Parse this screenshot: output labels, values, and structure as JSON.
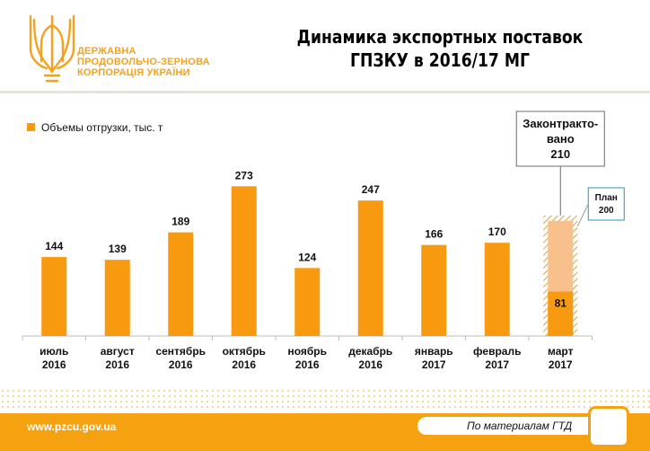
{
  "header": {
    "org_lines": [
      "ДЕРЖАВНА",
      "ПРОДОВОЛЬЧО-ЗЕРНОВА",
      "КОРПОРАЦІЯ УКРАЇНИ"
    ],
    "title_lines": [
      "Динамика экспортных поставок",
      "ГПЗКУ в 2016/17 МГ"
    ]
  },
  "footer": {
    "url": "www.pzcu.gov.ua",
    "source": "По материалам ГТД"
  },
  "colors": {
    "bar": "#f79a0f",
    "planned": "#f8c08a",
    "brand": "#f6a10f",
    "hatch": "#d4a24c",
    "plan_border": "#2a8fc5"
  },
  "chart_data": {
    "type": "bar",
    "series": [
      {
        "name": "Объемы отгрузки, тыс. т",
        "values": [
          144,
          139,
          189,
          273,
          124,
          247,
          166,
          170,
          81
        ]
      }
    ],
    "categories": [
      [
        "июль",
        "2016"
      ],
      [
        "август",
        "2016"
      ],
      [
        "сентябрь",
        "2016"
      ],
      [
        "октябрь",
        "2016"
      ],
      [
        "ноябрь",
        "2016"
      ],
      [
        "декабрь",
        "2016"
      ],
      [
        "январь",
        "2017"
      ],
      [
        "февраль",
        "2017"
      ],
      [
        "март",
        "2017"
      ]
    ],
    "contracted": {
      "category_index": 8,
      "value": 210,
      "label_lines": [
        "Законтракто-",
        "вано",
        "210"
      ]
    },
    "plan": {
      "category_index": 8,
      "value": 200,
      "label_lines": [
        "План",
        "200"
      ]
    },
    "ylim": [
      0,
      300
    ],
    "grid": false,
    "legend": "top-left"
  }
}
